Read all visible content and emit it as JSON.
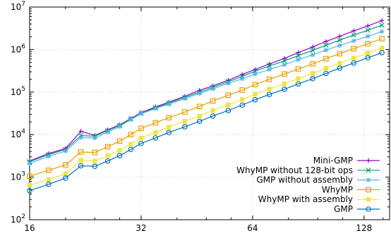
{
  "chart_data": {
    "type": "line",
    "title": "",
    "xlabel": "",
    "ylabel": "",
    "x_scale": "log2",
    "y_scale": "log10",
    "xlim": [
      16,
      150
    ],
    "ylim": [
      100,
      10000000
    ],
    "x_ticks": [
      {
        "value": 16,
        "label": "16"
      },
      {
        "value": 32,
        "label": "32"
      },
      {
        "value": 64,
        "label": "64"
      },
      {
        "value": 128,
        "label": "128"
      }
    ],
    "y_ticks": [
      {
        "value": 100,
        "base": "10",
        "exp": "2"
      },
      {
        "value": 1000,
        "base": "10",
        "exp": "3"
      },
      {
        "value": 10000,
        "base": "10",
        "exp": "4"
      },
      {
        "value": 100000,
        "base": "10",
        "exp": "5"
      },
      {
        "value": 1000000,
        "base": "10",
        "exp": "6"
      },
      {
        "value": 10000000,
        "base": "10",
        "exp": "7"
      }
    ],
    "grid": true,
    "legend_position": "bottom-right",
    "x": [
      16,
      18,
      20,
      22,
      24,
      26,
      28,
      30,
      32,
      35,
      38,
      42,
      46,
      50,
      55,
      60,
      65,
      71,
      78,
      85,
      93,
      101,
      110,
      120,
      131,
      143
    ],
    "series": [
      {
        "name": "Mini-GMP",
        "color": "#9400d3",
        "marker": "plus",
        "values": [
          2400,
          3600,
          4700,
          12000,
          9600,
          13000,
          17000,
          24000,
          33000,
          45000,
          58000,
          80000,
          110000,
          140000,
          190000,
          260000,
          340000,
          460000,
          620000,
          850000,
          1150000,
          1550000,
          2050000,
          2750000,
          3600000,
          4800000
        ]
      },
      {
        "name": "WhyMP without 128-bit ops",
        "color": "#009e73",
        "marker": "cross",
        "values": [
          2300,
          3400,
          4500,
          9500,
          9200,
          12500,
          16500,
          23500,
          32000,
          43000,
          55000,
          75000,
          100000,
          130000,
          175000,
          235000,
          310000,
          410000,
          540000,
          720000,
          960000,
          1270000,
          1660000,
          2200000,
          2850000,
          3750000
        ]
      },
      {
        "name": "GMP without assembly",
        "color": "#56b4e9",
        "marker": "star",
        "values": [
          2100,
          3100,
          4100,
          8500,
          8300,
          11500,
          15500,
          22500,
          31000,
          41000,
          52000,
          70000,
          93000,
          120000,
          160000,
          205000,
          265000,
          340000,
          440000,
          580000,
          750000,
          970000,
          1250000,
          1600000,
          2050000,
          2650000
        ]
      },
      {
        "name": "WhyMP",
        "color": "#e69f00",
        "marker": "square-open",
        "values": [
          1050,
          1450,
          1950,
          3900,
          3800,
          5200,
          7000,
          10000,
          14000,
          19000,
          25000,
          34000,
          46000,
          62000,
          84000,
          112000,
          150000,
          200000,
          265000,
          350000,
          460000,
          610000,
          800000,
          1050000,
          1380000,
          1800000
        ]
      },
      {
        "name": "WhyMP with assembly",
        "color": "#f0e442",
        "marker": "square-filled",
        "values": [
          650,
          880,
          1200,
          2500,
          2400,
          3200,
          4300,
          6000,
          8300,
          11200,
          15000,
          20500,
          27500,
          37000,
          50000,
          67000,
          89000,
          118000,
          157000,
          208000,
          275000,
          365000,
          480000,
          630000,
          830000,
          1090000
        ]
      },
      {
        "name": "GMP",
        "color": "#0072b2",
        "marker": "circle-open",
        "values": [
          480,
          680,
          950,
          1850,
          1800,
          2400,
          3200,
          4500,
          6200,
          8400,
          11200,
          15300,
          20500,
          27500,
          37000,
          49500,
          66000,
          88000,
          117000,
          156000,
          207000,
          275000,
          365000,
          485000,
          640000,
          845000
        ]
      }
    ]
  }
}
